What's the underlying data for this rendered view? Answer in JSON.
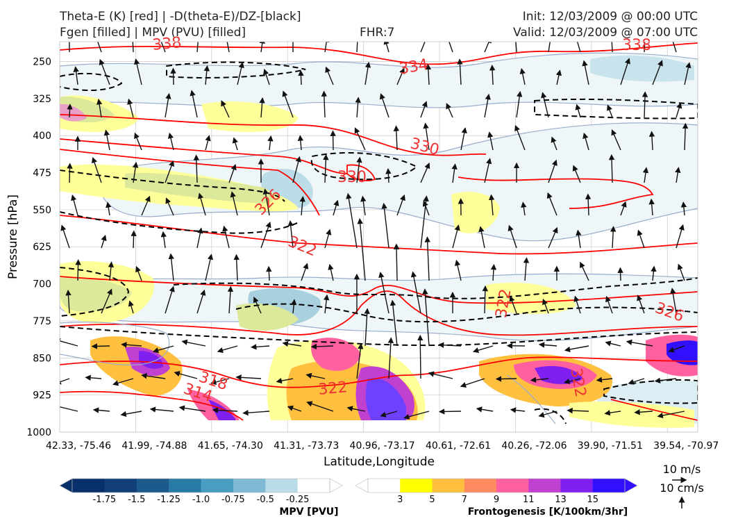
{
  "header": {
    "title_line1": "Theta-E (K) [red] | -D(theta-E)/DZ-[black]",
    "title_line2": "Fgen [filled] | MPV (PVU) [filled]",
    "fhr": "FHR:7",
    "init": "Init: 12/03/2009 @ 00:00 UTC",
    "valid": "Valid: 12/03/2009 @ 07:00 UTC"
  },
  "chart_data": {
    "type": "cross-section",
    "xlabel": "Latitude,Longitude",
    "ylabel": "Pressure [hPa]",
    "y_ticks": [
      250,
      325,
      400,
      475,
      550,
      625,
      700,
      775,
      850,
      925,
      1000
    ],
    "ylim": [
      1000,
      210
    ],
    "x_ticks": [
      "42.33, -75.46",
      "41.99, -74.88",
      "41.65, -74.30",
      "41.31, -73.73",
      "40.96, -73.17",
      "40.61, -72.61",
      "40.26, -72.06",
      "39.90, -71.51",
      "39.54, -70.97"
    ],
    "theta_e_contour_labels": [
      "338",
      "334",
      "330",
      "330",
      "326",
      "322",
      "318",
      "314",
      "322",
      "322",
      "326",
      "322",
      "338"
    ],
    "wind_vector_reference": {
      "horizontal": "10 m/s",
      "vertical": "10 cm/s"
    },
    "mpv_colorbar": {
      "title": "MPV [PVU]",
      "ticks": [
        "-1.75",
        "-1.5",
        "-1.25",
        "-1.0",
        "-0.75",
        "-0.5",
        "-0.25"
      ],
      "colors": [
        "#08306b",
        "#123f78",
        "#1c5a8c",
        "#2a7aa6",
        "#4a9cc0",
        "#7fb9d3",
        "#b9dbe6",
        "#ffffff"
      ]
    },
    "fgen_colorbar": {
      "title": "Frontogenesis [K/100km/3hr]",
      "ticks": [
        "3",
        "5",
        "7",
        "9",
        "11",
        "13",
        "15"
      ],
      "colors": [
        "#ffffff",
        "#ffff00",
        "#ffc040",
        "#ff8c60",
        "#ff60a0",
        "#c040d0",
        "#8020f0",
        "#3010ff"
      ]
    },
    "grid": true,
    "colors": {
      "theta_e": "#ff0000",
      "stability": "#000000",
      "mpv_outline": "#9aaccc",
      "axes_bg": "#ffffff",
      "grid": "#d0d0d0"
    }
  }
}
